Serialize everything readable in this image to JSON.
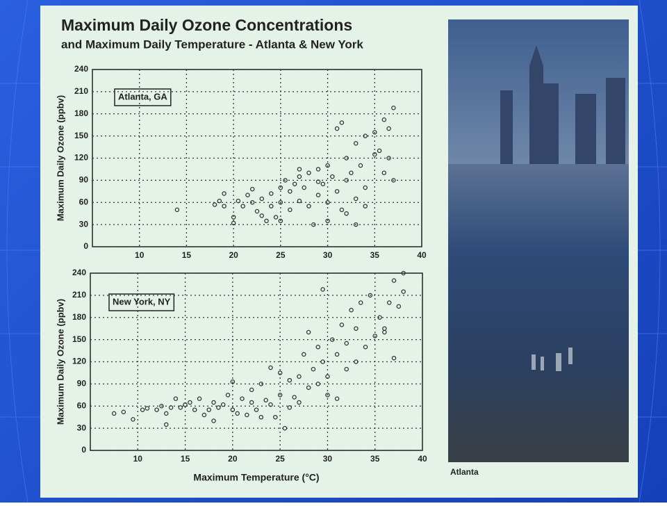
{
  "header": {
    "title": "Maximum Daily Ozone Concentrations",
    "subtitle": "and Maximum Daily Temperature - Atlanta & New York",
    "photo_caption": "Atlanta"
  },
  "chart_data": [
    {
      "type": "scatter",
      "annotation": "Atlanta, GA",
      "ylabel": "Maximum Daily Ozone (ppbv)",
      "x": [
        14,
        18,
        18.5,
        19,
        19,
        20,
        20,
        20.5,
        21,
        21.5,
        22,
        22,
        22.5,
        23,
        23,
        23.5,
        24,
        24,
        24.5,
        25,
        25,
        25,
        25.5,
        26,
        26,
        26.5,
        27,
        27,
        27.5,
        28,
        28,
        28.5,
        29,
        29,
        29.5,
        30,
        30,
        30,
        30.5,
        31,
        31,
        31.5,
        31.5,
        32,
        32,
        32.5,
        33,
        33,
        33.5,
        34,
        34,
        34,
        35,
        35,
        35.5,
        36,
        36,
        36.5,
        37,
        37,
        36.5,
        29,
        27,
        33,
        32
      ],
      "values": [
        50,
        57,
        62,
        72,
        55,
        40,
        32,
        62,
        55,
        70,
        78,
        60,
        48,
        65,
        42,
        35,
        72,
        55,
        40,
        80,
        60,
        35,
        90,
        75,
        50,
        85,
        95,
        62,
        80,
        100,
        55,
        30,
        105,
        70,
        85,
        110,
        60,
        35,
        95,
        160,
        75,
        168,
        50,
        120,
        90,
        100,
        140,
        65,
        110,
        150,
        80,
        55,
        155,
        125,
        130,
        172,
        100,
        160,
        188,
        90,
        120,
        88,
        105,
        30,
        45
      ],
      "color": "#333333",
      "xlim": [
        5,
        40
      ],
      "ylim": [
        0,
        240
      ],
      "xticks": [
        10,
        15,
        20,
        25,
        30,
        35,
        40
      ],
      "yticks": [
        0,
        30,
        60,
        90,
        120,
        150,
        180,
        210,
        240
      ],
      "grid": true
    },
    {
      "type": "scatter",
      "annotation": "New York, NY",
      "ylabel": "Maximum Daily Ozone (ppbv)",
      "xlabel": "Maximum Temperature (°C)",
      "x": [
        7.5,
        8.5,
        9.5,
        10.5,
        11,
        12,
        12.5,
        13,
        13,
        13.5,
        14,
        14.5,
        15,
        15.5,
        16,
        16.5,
        17,
        17.5,
        18,
        18,
        18.5,
        19,
        19.5,
        20,
        20,
        20.5,
        21,
        21.5,
        22,
        22,
        22.5,
        23,
        23,
        23.5,
        24,
        24,
        24.5,
        25,
        25,
        25.5,
        26,
        26,
        26.5,
        27,
        27,
        27.5,
        28,
        28,
        28.5,
        29,
        29,
        29.5,
        29.5,
        30,
        30,
        30.5,
        31,
        31,
        31.5,
        32,
        32,
        32.5,
        33,
        33,
        33.5,
        34,
        34.5,
        35,
        35.5,
        36,
        36.5,
        37,
        37,
        37.5,
        38,
        38,
        36
      ],
      "values": [
        50,
        52,
        42,
        55,
        57,
        55,
        60,
        35,
        50,
        58,
        70,
        58,
        62,
        65,
        55,
        70,
        48,
        55,
        40,
        65,
        58,
        62,
        75,
        93,
        55,
        50,
        70,
        48,
        82,
        65,
        55,
        90,
        45,
        68,
        112,
        62,
        45,
        105,
        75,
        30,
        95,
        58,
        72,
        100,
        65,
        130,
        160,
        85,
        110,
        140,
        90,
        218,
        120,
        100,
        75,
        150,
        130,
        70,
        170,
        145,
        110,
        190,
        165,
        120,
        200,
        140,
        210,
        155,
        180,
        165,
        200,
        230,
        125,
        195,
        240,
        215,
        160
      ],
      "color": "#333333",
      "xlim": [
        5,
        40
      ],
      "ylim": [
        0,
        240
      ],
      "xticks": [
        10,
        15,
        20,
        25,
        30,
        35,
        40
      ],
      "yticks": [
        0,
        30,
        60,
        90,
        120,
        150,
        180,
        210,
        240
      ],
      "grid": true
    }
  ]
}
